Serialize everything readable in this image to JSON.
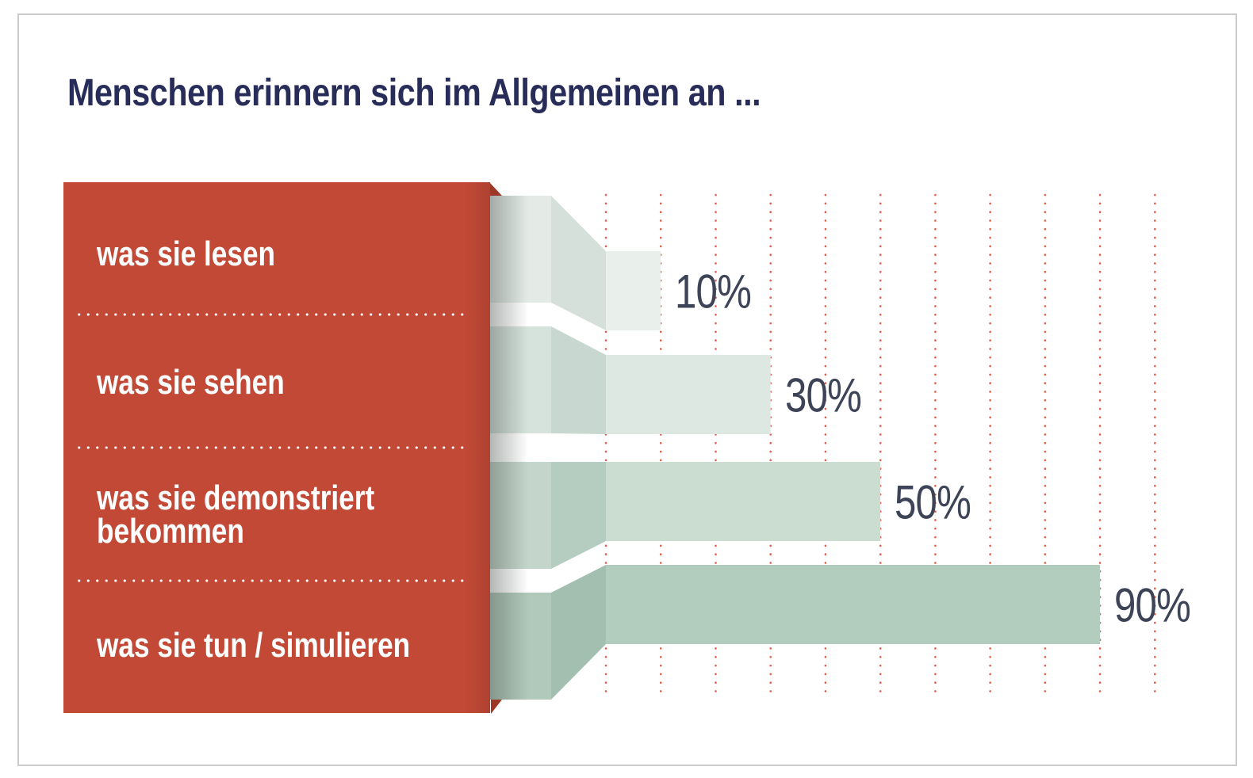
{
  "page": {
    "background": "#ffffff",
    "frame_border_color": "#cbcbcb"
  },
  "chart_data": {
    "type": "bar",
    "orientation": "horizontal",
    "title": "Menschen erinnern sich im Allgemeinen an ...",
    "categories": [
      "was sie lesen",
      "was sie sehen",
      "was sie demonstriert bekommen",
      "was sie tun / simulieren"
    ],
    "values": [
      10,
      30,
      50,
      90
    ],
    "value_labels": [
      "10%",
      "30%",
      "50%",
      "90%"
    ],
    "unit": "%",
    "xlim": [
      0,
      100
    ],
    "gridline_step_percent": 10,
    "grid_style": "vertical red dotted lines, behind bars",
    "legend_position": "left red panel",
    "colors": {
      "title": "#272c59",
      "value_label": "#3e4457",
      "grid_dot": "#e4604b",
      "ribbons": [
        {
          "back": "#e4ebe7",
          "fold": "#d6e0da",
          "bar": "#e9efeb"
        },
        {
          "back": "#d6e3dc",
          "fold": "#c8d8d0",
          "bar": "#dce8e1"
        },
        {
          "back": "#c4d6cb",
          "fold": "#b5cdc0",
          "bar": "#cbdcd1"
        },
        {
          "back": "#b0c9ba",
          "fold": "#a2bfaf",
          "bar": "#b2ccbd"
        }
      ]
    }
  },
  "legend_panel": {
    "background": "#c24936",
    "corner_fold_color": "#9e3826",
    "text_color": "#ffffff",
    "separator_dot_color": "#ffffff",
    "items": [
      {
        "label": "was sie lesen"
      },
      {
        "label": "was sie sehen"
      },
      {
        "label": "was sie demonstriert\nbekommen"
      },
      {
        "label": "was sie tun / simulieren"
      }
    ]
  }
}
